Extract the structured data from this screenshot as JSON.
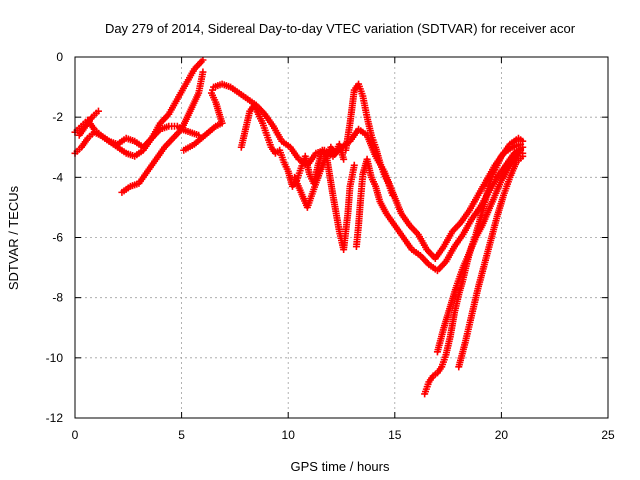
{
  "chart_data": {
    "type": "scatter",
    "title": "Day 279 of 2014, Sidereal Day-to-day VTEC variation (SDTVAR) for receiver acor",
    "xlabel": "GPS time / hours",
    "ylabel": "SDTVAR / TECUs",
    "xlim": [
      0,
      25
    ],
    "ylim": [
      -12,
      0
    ],
    "xticks": [
      "0",
      "5",
      "10",
      "15",
      "20",
      "25"
    ],
    "yticks": [
      "0",
      "-2",
      "-4",
      "-6",
      "-8",
      "-10",
      "-12"
    ],
    "grid": true,
    "marker": "+",
    "color": "#ff0000",
    "series": [
      {
        "x": [
          0.0,
          0.3,
          0.6,
          0.9,
          1.2,
          1.6,
          2.0,
          2.4,
          2.8,
          3.2,
          3.6,
          4.0,
          4.4,
          4.8,
          5.2,
          5.6,
          6.0
        ],
        "y": [
          -2.5,
          -2.3,
          -2.1,
          -2.4,
          -2.6,
          -2.8,
          -2.9,
          -2.7,
          -2.8,
          -3.0,
          -2.7,
          -2.2,
          -1.9,
          -1.4,
          -0.9,
          -0.4,
          -0.1
        ]
      },
      {
        "x": [
          0.0,
          0.3,
          0.6,
          0.9,
          1.2,
          1.6,
          2.0,
          2.4,
          2.8,
          3.2,
          3.6,
          4.0,
          4.4,
          4.8,
          5.0,
          5.4,
          5.8
        ],
        "y": [
          -3.2,
          -3.0,
          -2.7,
          -2.5,
          -2.6,
          -2.8,
          -3.0,
          -3.2,
          -3.3,
          -3.1,
          -2.7,
          -2.4,
          -2.3,
          -2.3,
          -2.4,
          -2.5,
          -2.6
        ]
      },
      {
        "x": [
          0.2,
          0.5,
          0.8,
          1.1
        ],
        "y": [
          -2.6,
          -2.3,
          -2.0,
          -1.8
        ]
      },
      {
        "x": [
          2.2,
          2.6,
          3.0,
          3.4,
          3.8,
          4.2,
          4.6,
          5.0,
          5.4,
          5.8,
          6.0
        ],
        "y": [
          -4.5,
          -4.3,
          -4.2,
          -3.8,
          -3.4,
          -3.0,
          -2.7,
          -2.4,
          -1.8,
          -1.2,
          -0.5
        ]
      },
      {
        "x": [
          5.1,
          5.6,
          6.1,
          6.6,
          6.9,
          6.6,
          6.4,
          6.5,
          6.9,
          7.3,
          7.7,
          8.1,
          8.5,
          8.9,
          9.3,
          9.7,
          10.1,
          10.5,
          10.9,
          11.3,
          11.7,
          12.1,
          12.5,
          12.9,
          13.3,
          13.7,
          14.1,
          14.5,
          14.9,
          15.3,
          15.7,
          16.1,
          16.5,
          16.9,
          17.3,
          17.7,
          18.1,
          18.5,
          18.9,
          19.3,
          19.7,
          20.1,
          20.5,
          20.9
        ],
        "y": [
          -3.1,
          -2.9,
          -2.6,
          -2.3,
          -2.2,
          -1.5,
          -1.2,
          -1.0,
          -0.9,
          -1.0,
          -1.2,
          -1.4,
          -1.6,
          -1.9,
          -2.3,
          -2.8,
          -3.0,
          -3.4,
          -3.6,
          -3.2,
          -3.1,
          -3.3,
          -3.0,
          -2.8,
          -2.4,
          -2.6,
          -3.3,
          -3.8,
          -4.5,
          -5.2,
          -5.6,
          -5.9,
          -6.4,
          -6.7,
          -6.3,
          -5.8,
          -5.5,
          -5.1,
          -4.6,
          -4.1,
          -3.6,
          -3.2,
          -3.0,
          -2.9
        ]
      },
      {
        "x": [
          7.8,
          8.0,
          8.2,
          8.4,
          8.6,
          8.8,
          9.0,
          9.2,
          9.4,
          9.6,
          9.8,
          10.0,
          10.2,
          10.4,
          10.6,
          10.8,
          11.0,
          11.2,
          11.4,
          11.6,
          11.8,
          12.0,
          12.2,
          12.4,
          12.6
        ],
        "y": [
          -3.0,
          -2.4,
          -1.8,
          -1.6,
          -1.9,
          -2.2,
          -2.6,
          -3.0,
          -3.2,
          -3.1,
          -3.5,
          -3.8,
          -4.3,
          -4.1,
          -3.7,
          -3.3,
          -3.9,
          -4.2,
          -3.6,
          -3.1,
          -3.3,
          -3.0,
          -3.2,
          -2.9,
          -3.4
        ]
      },
      {
        "x": [
          10.3,
          10.6,
          10.9,
          11.2,
          11.5,
          11.8,
          12.1,
          12.4,
          12.6,
          12.8,
          12.9,
          13.1
        ],
        "y": [
          -4.0,
          -4.5,
          -5.0,
          -4.4,
          -3.8,
          -3.3,
          -4.6,
          -5.8,
          -6.4,
          -5.2,
          -4.3,
          -3.6
        ]
      },
      {
        "x": [
          12.7,
          12.9,
          13.1,
          13.3,
          13.5,
          13.7,
          13.9,
          14.1,
          14.3,
          14.5,
          14.7,
          14.9
        ],
        "y": [
          -3.1,
          -2.2,
          -1.1,
          -0.9,
          -1.3,
          -2.0,
          -2.6,
          -3.0,
          -3.5,
          -3.9,
          -4.2,
          -4.6
        ]
      },
      {
        "x": [
          13.2,
          13.3,
          13.4,
          13.5,
          13.7,
          13.9,
          14.1,
          14.3,
          14.6,
          15.0,
          15.4,
          15.8,
          16.2,
          16.6,
          17.0,
          17.4,
          17.8,
          18.2,
          18.6,
          19.0,
          19.4,
          19.8,
          20.2,
          20.6,
          21.0
        ],
        "y": [
          -6.3,
          -5.6,
          -4.7,
          -3.9,
          -3.4,
          -4.0,
          -4.3,
          -4.8,
          -5.2,
          -5.6,
          -6.0,
          -6.4,
          -6.6,
          -6.9,
          -7.1,
          -6.8,
          -6.3,
          -5.9,
          -5.4,
          -5.0,
          -4.5,
          -4.0,
          -3.6,
          -3.2,
          -3.0
        ]
      },
      {
        "x": [
          16.4,
          16.6,
          16.8,
          17.0,
          17.2,
          17.4,
          17.6,
          17.8,
          18.0,
          18.2,
          18.4,
          18.6,
          18.8,
          19.0,
          19.2,
          19.4,
          19.6,
          19.8,
          20.0,
          20.2,
          20.4,
          20.6,
          20.8,
          21.0
        ],
        "y": [
          -11.2,
          -10.8,
          -10.6,
          -10.5,
          -10.3,
          -9.9,
          -9.3,
          -8.5,
          -7.9,
          -7.4,
          -6.8,
          -6.3,
          -5.9,
          -5.4,
          -4.9,
          -4.3,
          -3.9,
          -3.6,
          -3.3,
          -3.1,
          -2.9,
          -2.8,
          -2.7,
          -2.8
        ]
      },
      {
        "x": [
          17.0,
          17.3,
          17.6,
          17.9,
          18.2,
          18.5,
          18.8,
          19.1,
          19.4,
          19.7,
          20.0,
          20.3,
          20.6,
          20.9,
          21.0
        ],
        "y": [
          -9.8,
          -9.0,
          -8.3,
          -7.6,
          -7.0,
          -6.5,
          -6.0,
          -5.6,
          -5.1,
          -4.6,
          -4.1,
          -3.7,
          -3.4,
          -3.1,
          -3.2
        ]
      },
      {
        "x": [
          18.0,
          18.3,
          18.6,
          18.9,
          19.2,
          19.5,
          19.8,
          20.1,
          20.4,
          20.7,
          21.0
        ],
        "y": [
          -10.3,
          -9.5,
          -8.6,
          -7.7,
          -6.9,
          -6.1,
          -5.3,
          -4.6,
          -4.0,
          -3.5,
          -3.3
        ]
      }
    ]
  }
}
